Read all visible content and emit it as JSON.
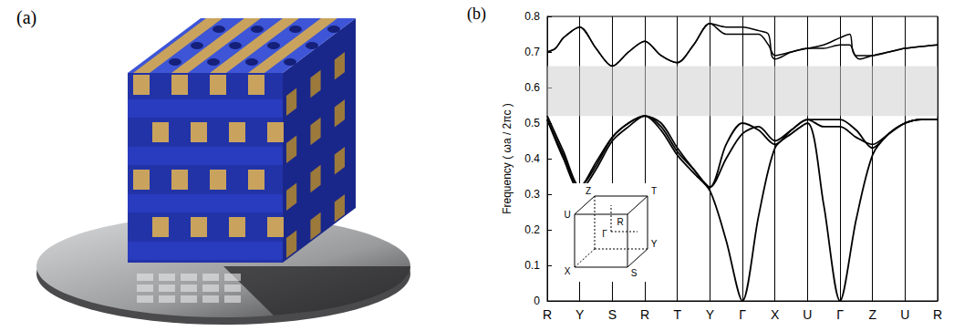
{
  "figure": {
    "panels": [
      {
        "label": "(a)"
      },
      {
        "label": "(b)"
      }
    ]
  },
  "chart_data": {
    "type": "line",
    "y_label": "Frequency ( ωa / 2πc )",
    "xlim": [
      0,
      12
    ],
    "xticks": [
      {
        "value": 0,
        "label": "R"
      },
      {
        "value": 1,
        "label": "Y"
      },
      {
        "value": 2,
        "label": "S"
      },
      {
        "value": 3,
        "label": "R"
      },
      {
        "value": 4,
        "label": "T"
      },
      {
        "value": 5,
        "label": "Y"
      },
      {
        "value": 6,
        "label": "Γ"
      },
      {
        "value": 7,
        "label": "X"
      },
      {
        "value": 8,
        "label": "U"
      },
      {
        "value": 9,
        "label": "Γ"
      },
      {
        "value": 10,
        "label": "Z"
      },
      {
        "value": 11,
        "label": "U"
      },
      {
        "value": 12,
        "label": "R"
      }
    ],
    "ylim": [
      0,
      0.8
    ],
    "yticks": [
      0,
      0.1,
      0.2,
      0.3,
      0.4,
      0.5,
      0.6,
      0.7,
      0.8
    ],
    "grid": "x",
    "color": "#000000",
    "band_gap": {
      "ylim": [
        0.52,
        0.66
      ],
      "color": "#cfcfcf"
    },
    "inset_labels": {
      "Z": "Z",
      "T": "T",
      "U": "U",
      "R": "R",
      "G": "Γ",
      "Y": "Y",
      "X": "X",
      "S": "S"
    },
    "series": [
      {
        "values": [
          [
            0,
            0.51
          ],
          [
            0.5,
            0.4
          ],
          [
            1,
            0.31
          ],
          [
            1.5,
            0.37
          ],
          [
            2,
            0.45
          ],
          [
            2.5,
            0.49
          ],
          [
            3,
            0.52
          ],
          [
            3.5,
            0.48
          ],
          [
            4,
            0.41
          ],
          [
            4.5,
            0.36
          ],
          [
            5,
            0.31
          ],
          [
            5.5,
            0.17
          ],
          [
            6,
            0
          ],
          [
            6.5,
            0.24
          ],
          [
            7,
            0.43
          ],
          [
            7.5,
            0.47
          ],
          [
            8,
            0.5
          ],
          [
            8.5,
            0.27
          ],
          [
            9,
            0
          ],
          [
            9.5,
            0.23
          ],
          [
            10,
            0.41
          ],
          [
            10.5,
            0.47
          ],
          [
            11,
            0.5
          ],
          [
            11.5,
            0.51
          ],
          [
            12,
            0.51
          ]
        ]
      },
      {
        "values": [
          [
            0,
            0.51
          ],
          [
            0.5,
            0.41
          ],
          [
            1,
            0.32
          ],
          [
            1.5,
            0.38
          ],
          [
            2,
            0.46
          ],
          [
            2.5,
            0.5
          ],
          [
            3,
            0.52
          ],
          [
            3.5,
            0.49
          ],
          [
            4,
            0.42
          ],
          [
            4.5,
            0.37
          ],
          [
            5,
            0.32
          ],
          [
            5.5,
            0.44
          ],
          [
            6,
            0.5
          ],
          [
            6.5,
            0.48
          ],
          [
            7,
            0.44
          ],
          [
            7.5,
            0.48
          ],
          [
            8,
            0.51
          ],
          [
            8.5,
            0.51
          ],
          [
            9,
            0.51
          ],
          [
            9.5,
            0.48
          ],
          [
            10,
            0.43
          ],
          [
            10.5,
            0.47
          ],
          [
            11,
            0.5
          ],
          [
            11.5,
            0.51
          ],
          [
            12,
            0.51
          ]
        ]
      },
      {
        "values": [
          [
            0,
            0.52
          ],
          [
            0.5,
            0.42
          ],
          [
            1,
            0.32
          ],
          [
            1.5,
            0.39
          ],
          [
            2,
            0.46
          ],
          [
            2.5,
            0.5
          ],
          [
            3,
            0.52
          ],
          [
            3.5,
            0.5
          ],
          [
            4,
            0.43
          ],
          [
            4.5,
            0.37
          ],
          [
            5,
            0.32
          ],
          [
            5.5,
            0.4
          ],
          [
            6,
            0.47
          ],
          [
            6.5,
            0.49
          ],
          [
            7,
            0.45
          ],
          [
            7.5,
            0.48
          ],
          [
            8,
            0.51
          ],
          [
            8.5,
            0.49
          ],
          [
            9,
            0.49
          ],
          [
            9.5,
            0.46
          ],
          [
            10,
            0.44
          ],
          [
            10.5,
            0.47
          ],
          [
            11,
            0.5
          ],
          [
            11.5,
            0.51
          ],
          [
            12,
            0.51
          ]
        ]
      },
      {
        "values": [
          [
            0,
            0.7
          ],
          [
            0.25,
            0.71
          ],
          [
            0.5,
            0.74
          ],
          [
            1,
            0.77
          ],
          [
            1.5,
            0.71
          ],
          [
            2,
            0.66
          ],
          [
            2.5,
            0.7
          ],
          [
            3,
            0.73
          ],
          [
            3.5,
            0.69
          ],
          [
            4,
            0.67
          ],
          [
            4.5,
            0.72
          ],
          [
            5,
            0.78
          ],
          [
            5.5,
            0.77
          ],
          [
            6,
            0.77
          ],
          [
            6.5,
            0.76
          ],
          [
            6.8,
            0.75
          ],
          [
            6.9,
            0.69
          ],
          [
            7,
            0.68
          ],
          [
            7.5,
            0.7
          ],
          [
            8,
            0.71
          ],
          [
            8.5,
            0.72
          ],
          [
            9,
            0.74
          ],
          [
            9.3,
            0.75
          ],
          [
            9.4,
            0.7
          ],
          [
            9.6,
            0.68
          ],
          [
            10,
            0.69
          ],
          [
            10.5,
            0.7
          ],
          [
            11,
            0.71
          ],
          [
            12,
            0.72
          ]
        ]
      },
      {
        "values": [
          [
            0,
            0.7
          ],
          [
            0.25,
            0.71
          ],
          [
            0.5,
            0.74
          ],
          [
            1,
            0.77
          ],
          [
            1.5,
            0.71
          ],
          [
            2,
            0.66
          ],
          [
            2.5,
            0.7
          ],
          [
            3,
            0.73
          ],
          [
            3.5,
            0.69
          ],
          [
            4,
            0.67
          ],
          [
            4.5,
            0.72
          ],
          [
            5,
            0.78
          ],
          [
            5.5,
            0.75
          ],
          [
            6,
            0.75
          ],
          [
            6.5,
            0.75
          ],
          [
            6.8,
            0.72
          ],
          [
            7,
            0.69
          ],
          [
            7.5,
            0.7
          ],
          [
            8,
            0.71
          ],
          [
            8.5,
            0.71
          ],
          [
            9,
            0.72
          ],
          [
            9.3,
            0.72
          ],
          [
            9.5,
            0.69
          ],
          [
            10,
            0.69
          ],
          [
            10.5,
            0.7
          ],
          [
            11,
            0.71
          ],
          [
            12,
            0.72
          ]
        ]
      }
    ]
  }
}
